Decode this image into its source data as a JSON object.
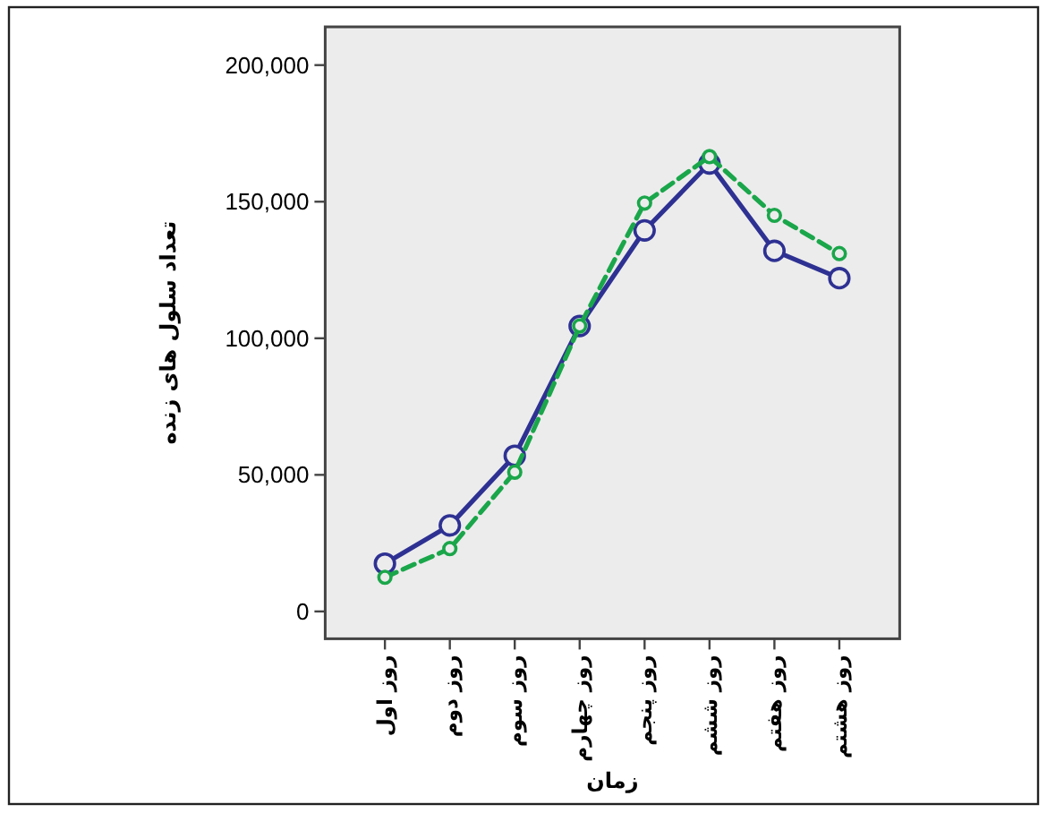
{
  "chart_data": {
    "type": "line",
    "xlabel": "زمان",
    "ylabel": "تعداد سلول های زنده",
    "categories": [
      "روز اول",
      "روز دوم",
      "روز سوم",
      "روز چهارم",
      "روز پنجم",
      "روز ششم",
      "روز هفتم",
      "روز هشتم"
    ],
    "series": [
      {
        "color": "#2e3192",
        "line_style": "solid",
        "values": [
          17500,
          31500,
          57000,
          104500,
          139500,
          164000,
          132000,
          122000
        ]
      },
      {
        "color": "#1aa64a",
        "line_style": "dashed",
        "values": [
          12500,
          23000,
          51000,
          104500,
          149500,
          166500,
          145000,
          131000
        ]
      }
    ],
    "marker": "circle",
    "grid": false,
    "ylim": [
      -10000,
      214000
    ],
    "yticks": [
      {
        "value": 0,
        "label": "0"
      },
      {
        "value": 50000,
        "label": "50,000"
      },
      {
        "value": 100000,
        "label": "100,000"
      },
      {
        "value": 150000,
        "label": "150,000"
      },
      {
        "value": 200000,
        "label": "200,000"
      }
    ]
  }
}
